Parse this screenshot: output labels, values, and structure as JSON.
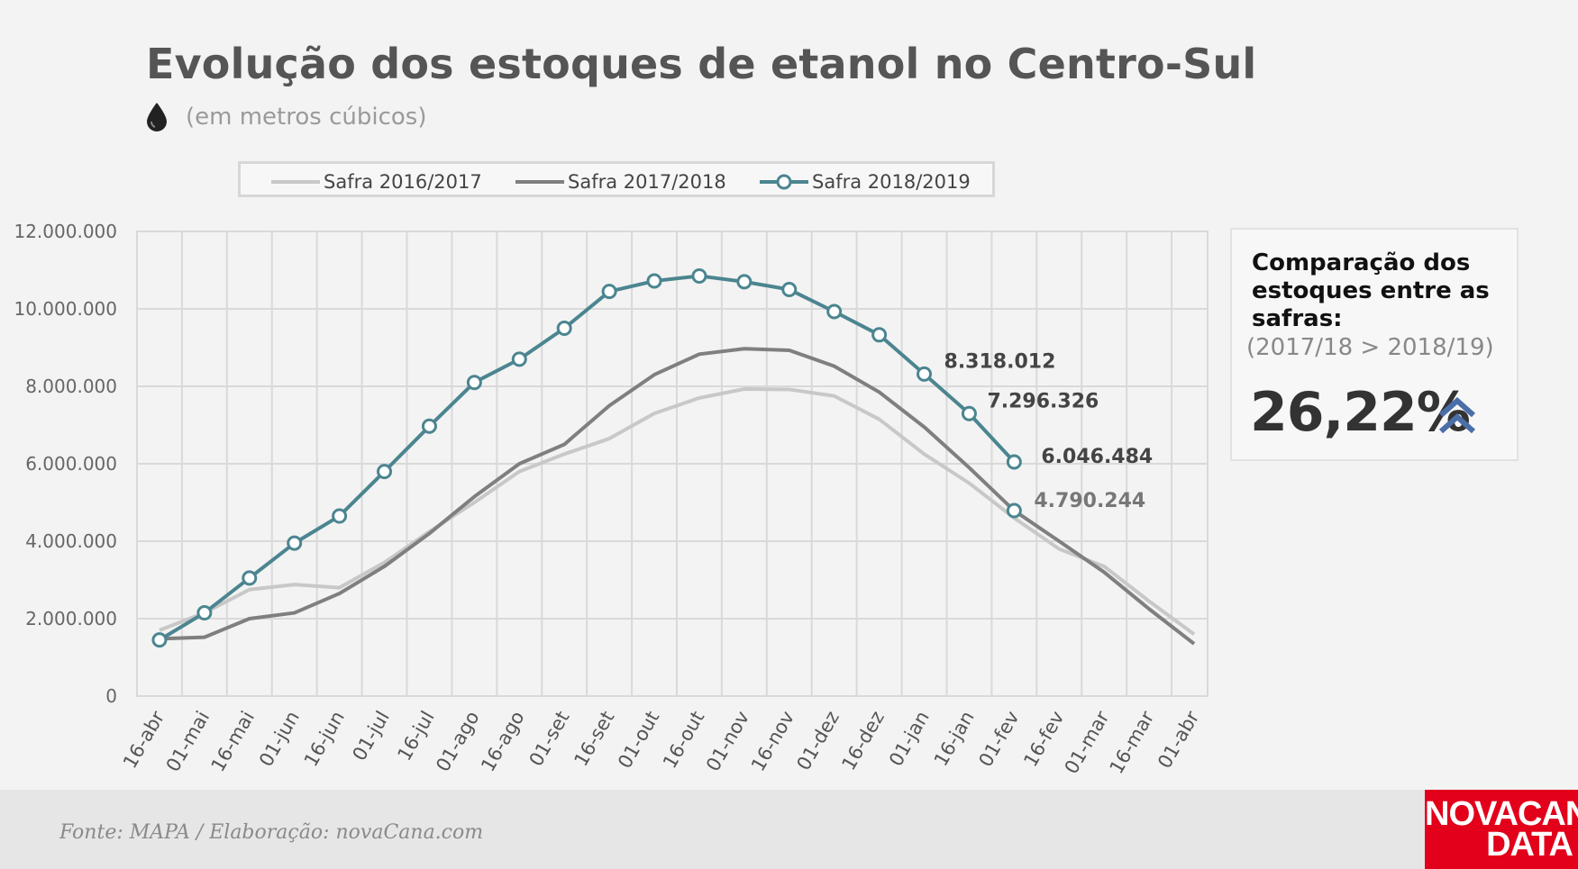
{
  "header": {
    "title": "Evolução dos estoques de etanol no Centro-Sul",
    "subtitle": "(em metros cúbicos)",
    "icon": "drop-icon"
  },
  "chart_data": {
    "type": "line",
    "categories": [
      "16-abr",
      "01-mai",
      "16-mai",
      "01-jun",
      "16-jun",
      "01-jul",
      "16-jul",
      "01-ago",
      "16-ago",
      "01-set",
      "16-set",
      "01-out",
      "16-out",
      "01-nov",
      "16-nov",
      "01-dez",
      "16-dez",
      "01-jan",
      "16-jan",
      "01-fev",
      "16-fev",
      "01-mar",
      "16-mar",
      "01-abr"
    ],
    "ylim": [
      0,
      12000000
    ],
    "yticks": [
      "0",
      "2.000.000",
      "4.000.000",
      "6.000.000",
      "8.000.000",
      "10.000.000",
      "12.000.000"
    ],
    "legend_position": "top",
    "grid": true,
    "series": [
      {
        "name": "Safra 2016/2017",
        "color": "#c8c8c8",
        "markers": false,
        "values": [
          1700000,
          2150000,
          2750000,
          2880000,
          2800000,
          3450000,
          4250000,
          5000000,
          5800000,
          6250000,
          6650000,
          7300000,
          7700000,
          7930000,
          7920000,
          7750000,
          7150000,
          6250000,
          5500000,
          4600000,
          3800000,
          3350000,
          2450000,
          1600000
        ]
      },
      {
        "name": "Safra 2017/2018",
        "color": "#7f7f7f",
        "markers": false,
        "values": [
          1480000,
          1520000,
          2000000,
          2150000,
          2650000,
          3350000,
          4200000,
          5150000,
          6000000,
          6500000,
          7500000,
          8300000,
          8830000,
          8970000,
          8930000,
          8520000,
          7850000,
          6950000,
          5900000,
          4790244,
          4000000,
          3200000,
          2250000,
          1350000
        ]
      },
      {
        "name": "Safra 2018/2019",
        "color": "#4b8590",
        "markers": true,
        "values": [
          1450000,
          2150000,
          3050000,
          3950000,
          4650000,
          5800000,
          6970000,
          8100000,
          8700000,
          9500000,
          10450000,
          10720000,
          10850000,
          10700000,
          10500000,
          9930000,
          9330000,
          8318012,
          7296326,
          6046484,
          null,
          null,
          null,
          null
        ]
      }
    ],
    "annotations": [
      {
        "text": "8.318.012",
        "category": "01-jan",
        "value": 8318012,
        "color": "#444444"
      },
      {
        "text": "7.296.326",
        "category": "16-jan",
        "value": 7296326,
        "color": "#444444"
      },
      {
        "text": "6.046.484",
        "category": "01-fev",
        "value": 6046484,
        "color": "#444444"
      },
      {
        "text": "4.790.244",
        "category": "01-fev",
        "value": 4790244,
        "color": "#777777"
      }
    ],
    "extra_marker": {
      "category": "01-fev",
      "value": 4790244
    }
  },
  "side_card": {
    "heading": "Comparação dos estoques entre as safras:",
    "sub": "(2017/18 > 2018/19)",
    "percent": "26,22%",
    "arrow_icon": "double-chevron-up-icon",
    "arrow_color": "#4a6ea8"
  },
  "footer": {
    "source": "Fonte: MAPA  / Elaboração: novaCana.com",
    "brand_line1": "NOVACANA",
    "brand_line2": "DATA"
  }
}
